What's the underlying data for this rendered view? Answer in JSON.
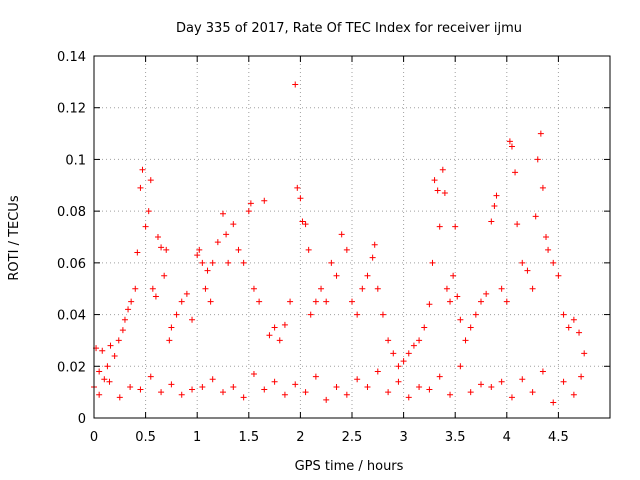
{
  "chart_data": {
    "type": "scatter",
    "title": "Day 335 of 2017, Rate Of TEC Index for receiver ijmu",
    "xlabel": "GPS time / hours",
    "ylabel": "ROTI / TECUs",
    "xlim": [
      0,
      5
    ],
    "ylim": [
      0,
      0.14
    ],
    "grid": true,
    "marker": "+",
    "x_ticks": [
      0,
      0.5,
      1,
      1.5,
      2,
      2.5,
      3,
      3.5,
      4,
      4.5
    ],
    "x_tick_labels": [
      "0",
      "0.5",
      "1",
      "1.5",
      "2",
      "2.5",
      "3",
      "3.5",
      "4",
      "4.5"
    ],
    "y_ticks": [
      0,
      0.02,
      0.04,
      0.06,
      0.08,
      0.1,
      0.12,
      0.14
    ],
    "y_tick_labels": [
      "0",
      "0.02",
      "0.04",
      "0.06",
      "0.08",
      "0.1",
      "0.12",
      "0.14"
    ],
    "series": [
      {
        "name": "ROTI",
        "color": "#ff0000",
        "x": [
          0.0,
          0.02,
          0.05,
          0.08,
          0.1,
          0.13,
          0.16,
          0.2,
          0.24,
          0.28,
          0.3,
          0.33,
          0.36,
          0.4,
          0.42,
          0.45,
          0.47,
          0.5,
          0.53,
          0.55,
          0.57,
          0.6,
          0.62,
          0.65,
          0.68,
          0.7,
          0.73,
          0.75,
          0.8,
          0.85,
          0.9,
          0.95,
          1.0,
          1.02,
          1.05,
          1.08,
          1.1,
          1.13,
          1.15,
          1.2,
          1.25,
          1.28,
          1.3,
          1.35,
          1.4,
          1.45,
          1.5,
          1.52,
          1.55,
          1.6,
          1.65,
          1.7,
          1.75,
          1.8,
          1.85,
          1.9,
          1.95,
          1.97,
          2.0,
          2.02,
          2.05,
          2.08,
          2.1,
          2.15,
          2.2,
          2.25,
          2.3,
          2.35,
          2.4,
          2.45,
          2.5,
          2.55,
          2.6,
          2.65,
          2.7,
          2.72,
          2.75,
          2.8,
          2.85,
          2.9,
          2.95,
          3.0,
          3.05,
          3.1,
          3.15,
          3.2,
          3.25,
          3.28,
          3.3,
          3.33,
          3.35,
          3.38,
          3.4,
          3.42,
          3.45,
          3.48,
          3.5,
          3.52,
          3.55,
          3.6,
          3.65,
          3.7,
          3.75,
          3.8,
          3.85,
          3.88,
          3.9,
          3.95,
          4.0,
          4.03,
          4.05,
          4.08,
          4.1,
          4.15,
          4.2,
          4.25,
          4.28,
          4.3,
          4.33,
          4.35,
          4.38,
          4.4,
          4.45,
          4.5,
          4.55,
          4.6,
          4.65,
          4.7,
          4.75,
          0.15,
          0.35,
          0.55,
          0.75,
          0.95,
          1.15,
          1.35,
          1.55,
          1.75,
          1.95,
          2.15,
          2.35,
          2.55,
          2.75,
          2.95,
          3.15,
          3.35,
          3.55,
          3.75,
          3.95,
          4.15,
          4.35,
          4.55,
          4.72,
          0.05,
          0.25,
          0.45,
          0.65,
          0.85,
          1.05,
          1.25,
          1.45,
          1.65,
          1.85,
          2.05,
          2.25,
          2.45,
          2.65,
          2.85,
          3.05,
          3.25,
          3.45,
          3.65,
          3.85,
          4.05,
          4.25,
          4.45,
          4.65
        ],
        "y": [
          0.012,
          0.027,
          0.018,
          0.026,
          0.015,
          0.02,
          0.028,
          0.024,
          0.03,
          0.034,
          0.038,
          0.042,
          0.045,
          0.05,
          0.064,
          0.089,
          0.096,
          0.074,
          0.08,
          0.092,
          0.05,
          0.047,
          0.07,
          0.066,
          0.055,
          0.065,
          0.03,
          0.035,
          0.04,
          0.045,
          0.048,
          0.038,
          0.063,
          0.065,
          0.06,
          0.05,
          0.057,
          0.045,
          0.06,
          0.068,
          0.079,
          0.071,
          0.06,
          0.075,
          0.065,
          0.06,
          0.08,
          0.083,
          0.05,
          0.045,
          0.084,
          0.032,
          0.035,
          0.03,
          0.036,
          0.045,
          0.129,
          0.089,
          0.085,
          0.076,
          0.075,
          0.065,
          0.04,
          0.045,
          0.05,
          0.045,
          0.06,
          0.055,
          0.071,
          0.065,
          0.045,
          0.04,
          0.05,
          0.055,
          0.062,
          0.067,
          0.05,
          0.04,
          0.03,
          0.025,
          0.02,
          0.022,
          0.025,
          0.028,
          0.03,
          0.035,
          0.044,
          0.06,
          0.092,
          0.088,
          0.074,
          0.096,
          0.087,
          0.05,
          0.045,
          0.055,
          0.074,
          0.047,
          0.038,
          0.03,
          0.035,
          0.04,
          0.045,
          0.048,
          0.076,
          0.082,
          0.086,
          0.05,
          0.045,
          0.107,
          0.105,
          0.095,
          0.075,
          0.06,
          0.057,
          0.05,
          0.078,
          0.1,
          0.11,
          0.089,
          0.07,
          0.065,
          0.06,
          0.055,
          0.04,
          0.035,
          0.038,
          0.033,
          0.025,
          0.014,
          0.012,
          0.016,
          0.013,
          0.011,
          0.015,
          0.012,
          0.017,
          0.014,
          0.013,
          0.016,
          0.012,
          0.015,
          0.018,
          0.014,
          0.012,
          0.016,
          0.02,
          0.013,
          0.014,
          0.015,
          0.018,
          0.014,
          0.016,
          0.009,
          0.008,
          0.011,
          0.01,
          0.009,
          0.012,
          0.01,
          0.008,
          0.011,
          0.009,
          0.01,
          0.007,
          0.009,
          0.012,
          0.01,
          0.008,
          0.011,
          0.009,
          0.01,
          0.012,
          0.008,
          0.01,
          0.006,
          0.009
        ]
      }
    ]
  }
}
